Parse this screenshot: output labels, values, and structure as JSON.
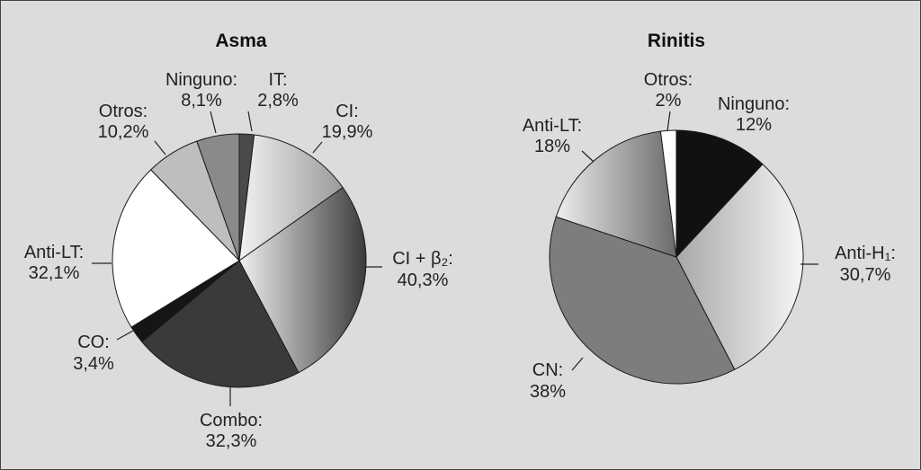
{
  "chart_data": [
    {
      "type": "pie",
      "title": "Asma",
      "slices": [
        {
          "label": "IT:",
          "value_text": "2,8%",
          "value": 2.8,
          "color": "#4a4a4a"
        },
        {
          "label": "CI:",
          "value_text": "19,9%",
          "value": 19.9,
          "color": "#c8c8c8"
        },
        {
          "label": "CI + β₂:",
          "value_text": "40,3%",
          "value": 40.3,
          "color": "#777777"
        },
        {
          "label": "Combo:",
          "value_text": "32,3%",
          "value": 32.3,
          "color": "#3a3a3a"
        },
        {
          "label": "CO:",
          "value_text": "3,4%",
          "value": 3.4,
          "color": "#151515"
        },
        {
          "label": "Anti-LT:",
          "value_text": "32,1%",
          "value": 32.1,
          "color": "#ffffff"
        },
        {
          "label": "Otros:",
          "value_text": "10,2%",
          "value": 10.2,
          "color": "#bebebe"
        },
        {
          "label": "Ninguno:",
          "value_text": "8,1%",
          "value": 8.1,
          "color": "#8a8a8a"
        }
      ]
    },
    {
      "type": "pie",
      "title": "Rinitis",
      "slices": [
        {
          "label": "Ninguno:",
          "value_text": "12%",
          "value": 12,
          "color": "#111111"
        },
        {
          "label": "Anti-H₁:",
          "value_text": "30,7%",
          "value": 30.7,
          "color": "#d8d8d8"
        },
        {
          "label": "CN:",
          "value_text": "38%",
          "value": 38,
          "color": "#7d7d7d"
        },
        {
          "label": "Anti-LT:",
          "value_text": "18%",
          "value": 18,
          "color": "#aaaaaa"
        },
        {
          "label": "Otros:",
          "value_text": "2%",
          "value": 2,
          "color": "#ffffff"
        }
      ]
    }
  ]
}
